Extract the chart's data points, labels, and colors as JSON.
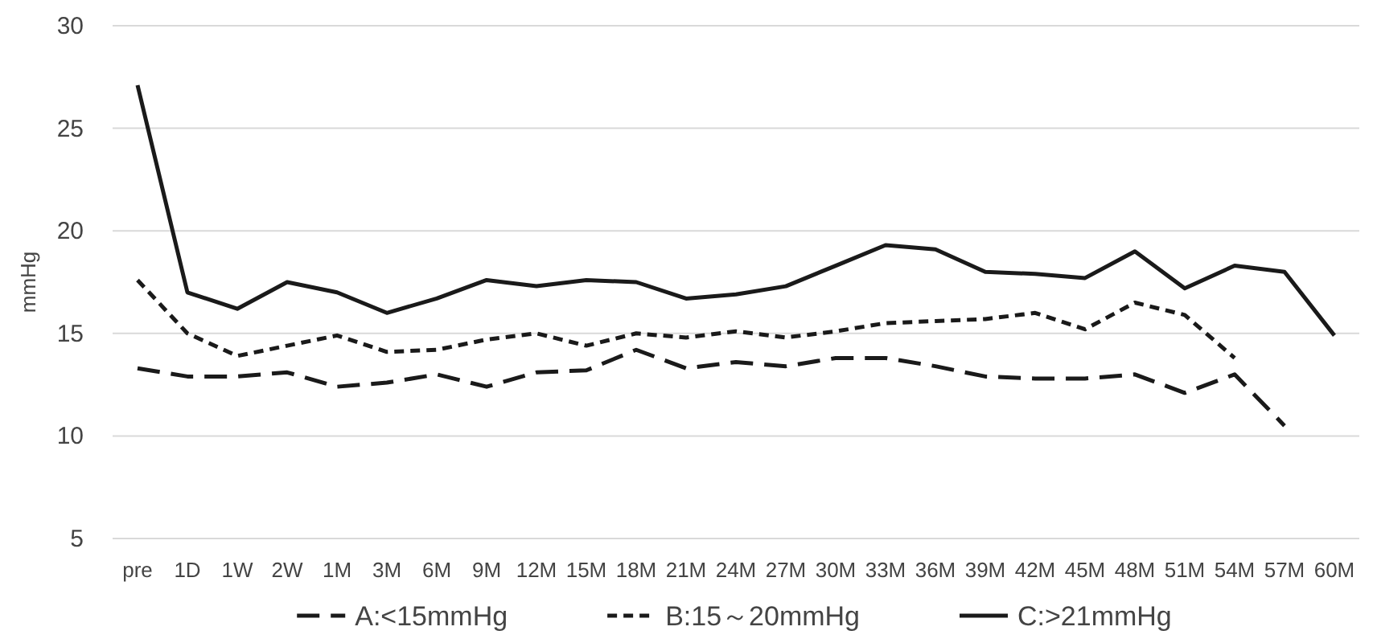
{
  "chart_data": {
    "type": "line",
    "ylabel": "mmHg",
    "categories": [
      "pre",
      "1D",
      "1W",
      "2W",
      "1M",
      "3M",
      "6M",
      "9M",
      "12M",
      "15M",
      "18M",
      "21M",
      "24M",
      "27M",
      "30M",
      "33M",
      "36M",
      "39M",
      "42M",
      "45M",
      "48M",
      "51M",
      "54M",
      "57M",
      "60M"
    ],
    "series": [
      {
        "name": "A:<15mmHg",
        "color": "#1a1a1a",
        "line_style": "dashed",
        "values": [
          13.3,
          12.9,
          12.9,
          13.1,
          12.4,
          12.6,
          13.0,
          12.4,
          13.1,
          13.2,
          14.2,
          13.3,
          13.6,
          13.4,
          13.8,
          13.8,
          13.4,
          12.9,
          12.8,
          12.8,
          13.0,
          12.1,
          13.0,
          10.5,
          null
        ]
      },
      {
        "name": "B:15～20mmHg",
        "color": "#1a1a1a",
        "line_style": "dotted",
        "values": [
          17.6,
          15.0,
          13.9,
          14.4,
          14.9,
          14.1,
          14.2,
          14.7,
          15.0,
          14.4,
          15.0,
          14.8,
          15.1,
          14.8,
          15.1,
          15.5,
          15.6,
          15.7,
          16.0,
          15.2,
          16.5,
          15.9,
          13.8,
          null,
          null
        ]
      },
      {
        "name": "C:>21mmHg",
        "color": "#1a1a1a",
        "line_style": "solid",
        "values": [
          27.1,
          17.0,
          16.2,
          17.5,
          17.0,
          16.0,
          16.7,
          17.6,
          17.3,
          17.6,
          17.5,
          16.7,
          16.9,
          17.3,
          18.3,
          19.3,
          19.1,
          18.0,
          17.9,
          17.7,
          19.0,
          17.2,
          18.3,
          18.0,
          14.9
        ]
      }
    ],
    "ylim": [
      5,
      30
    ],
    "yticks": [
      5,
      10,
      15,
      20,
      25,
      30
    ],
    "grid": "y",
    "legend": "bottom",
    "marker": "none"
  }
}
